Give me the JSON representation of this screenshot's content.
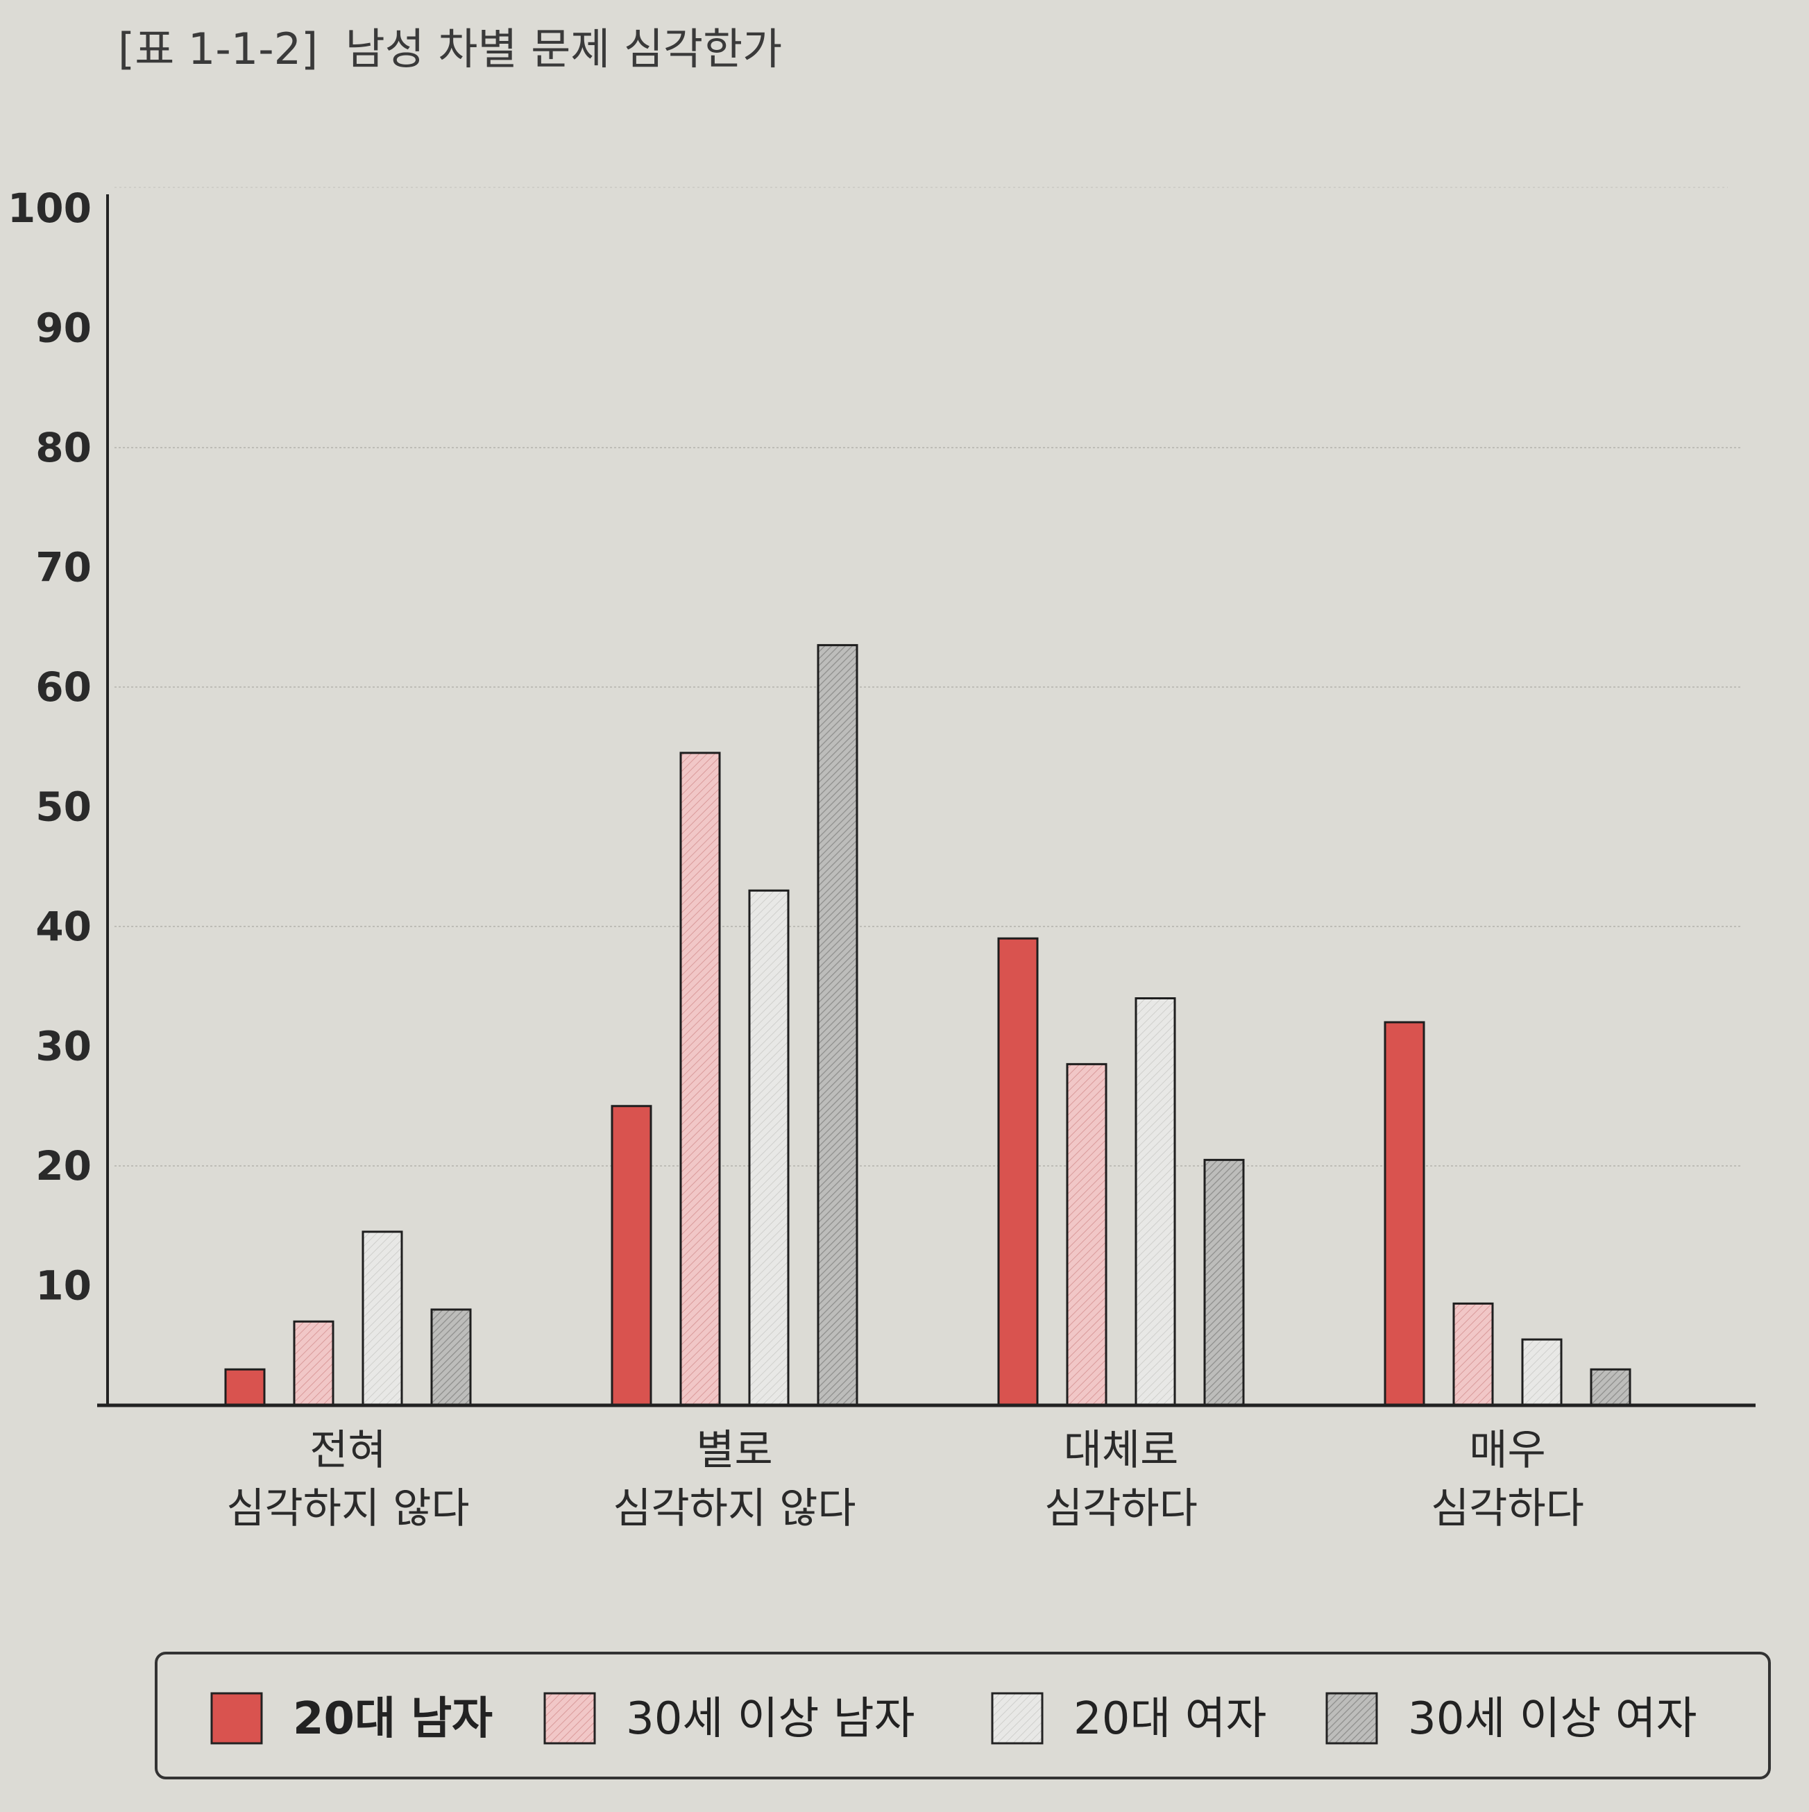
{
  "chart_data": {
    "type": "bar",
    "title": "[표 1-1-2]  남성 차별 문제 심각한가",
    "xlabel": "",
    "ylabel": "",
    "ylim": [
      0,
      100
    ],
    "yticks": [
      "10",
      "20",
      "30",
      "40",
      "50",
      "60",
      "70",
      "80",
      "90",
      "100"
    ],
    "grid_lines_at": [
      20,
      40,
      60,
      80
    ],
    "categories": [
      [
        "전혀",
        "심각하지 않다"
      ],
      [
        "별로",
        "심각하지 않다"
      ],
      [
        "대체로",
        "심각하다"
      ],
      [
        "매우",
        "심각하다"
      ]
    ],
    "series": [
      {
        "name": "20대 남자",
        "values": [
          3,
          25,
          39,
          32
        ],
        "color": "#d9534f",
        "pattern": "solid"
      },
      {
        "name": "30세 이상 남자",
        "values": [
          7,
          54.5,
          28.5,
          8.5
        ],
        "color": "#f1c7c7",
        "pattern": "hatch-light"
      },
      {
        "name": "20대 여자",
        "values": [
          14.5,
          43,
          34,
          5.5
        ],
        "color": "#e6e6e4",
        "pattern": "hatch-faint"
      },
      {
        "name": "30세 이상 여자",
        "values": [
          8,
          63.5,
          20.5,
          3
        ],
        "color": "#b8b8b6",
        "pattern": "hatch-dark"
      }
    ],
    "legend": {
      "placement": "bottom",
      "bold_first": true
    }
  }
}
